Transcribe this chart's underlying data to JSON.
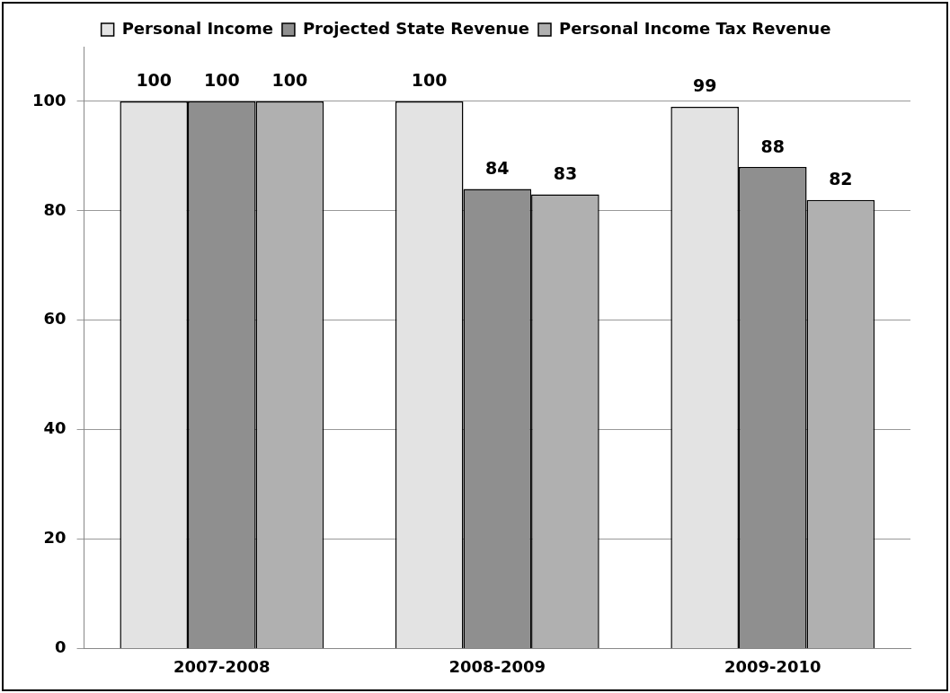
{
  "chart_data": {
    "type": "bar",
    "categories": [
      "2007-2008",
      "2008-2009",
      "2009-2010"
    ],
    "series": [
      {
        "name": "Personal Income",
        "color": "#e3e3e3",
        "values": [
          100,
          100,
          99
        ]
      },
      {
        "name": "Projected State Revenue",
        "color": "#8f8f8f",
        "values": [
          100,
          84,
          88
        ]
      },
      {
        "name": "Personal Income Tax Revenue",
        "color": "#b0b0b0",
        "values": [
          100,
          83,
          82
        ]
      }
    ],
    "ylim": [
      0,
      110
    ],
    "yticks": [
      0,
      20,
      40,
      60,
      80,
      100
    ],
    "grid": "y",
    "legend": "top",
    "data_labels": true
  }
}
